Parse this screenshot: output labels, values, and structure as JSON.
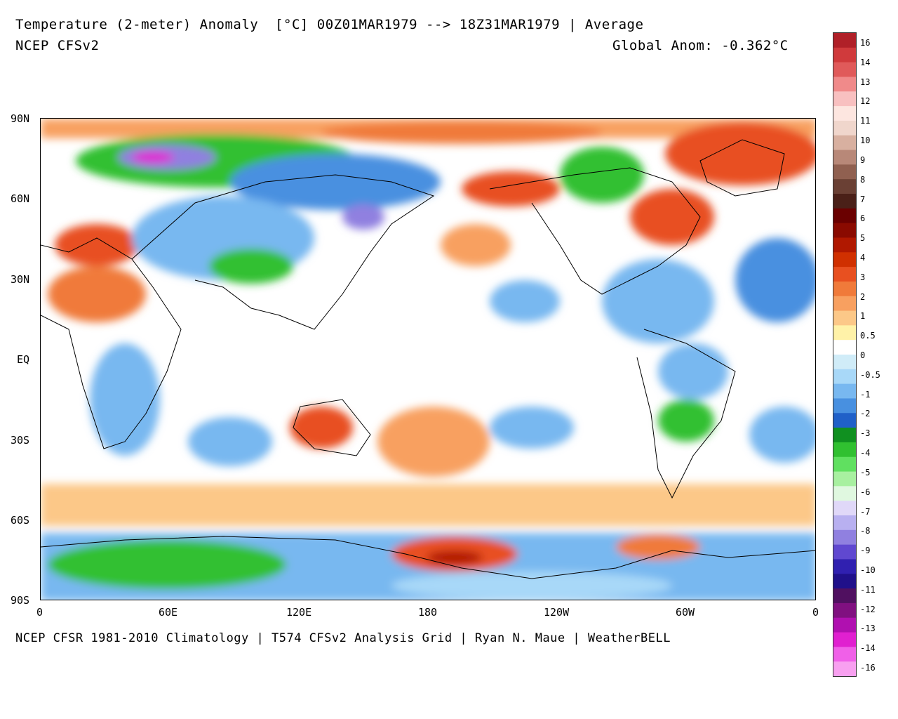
{
  "header": {
    "title": "Temperature (2-meter) Anomaly  [°C] 00Z01MAR1979 --> 18Z31MAR1979 | Average",
    "model": "NCEP CFSv2",
    "global_anom": "Global Anom: -0.362°C"
  },
  "footer": "NCEP CFSR 1981-2010 Climatology | T574 CFSv2 Analysis Grid | Ryan N. Maue | WeatherBELL",
  "axes": {
    "lat_labels": [
      "90N",
      "60N",
      "30N",
      "30S",
      "60S",
      "90S"
    ],
    "equator_label": "EQ",
    "lon_labels": [
      "0",
      "60E",
      "120E",
      "180",
      "120W",
      "60W",
      "0"
    ]
  },
  "legend": {
    "labels": [
      "16",
      "14",
      "13",
      "12",
      "11",
      "10",
      "9",
      "8",
      "7",
      "6",
      "5",
      "4",
      "3",
      "2",
      "1",
      "0.5",
      "0",
      "-0.5",
      "-1",
      "-2",
      "-3",
      "-4",
      "-5",
      "-6",
      "-7",
      "-8",
      "-9",
      "-10",
      "-11",
      "-12",
      "-13",
      "-14",
      "-16"
    ],
    "colors": [
      "#b02028",
      "#d03a3c",
      "#e05a5a",
      "#f08a8a",
      "#f8c0c0",
      "#fde6e0",
      "#f0d6cc",
      "#d8b0a0",
      "#b88878",
      "#906050",
      "#6a4034",
      "#4a2018",
      "#6a0000",
      "#8a0a00",
      "#b01800",
      "#d03000",
      "#e85020",
      "#f07a3a",
      "#f8a060",
      "#fcc888",
      "#fff2a8",
      "#ffffff",
      "#d0ecf8",
      "#a8d8f8",
      "#78b8f0",
      "#4890e0",
      "#2060c8",
      "#109020",
      "#30c030",
      "#60e060",
      "#a8f0a0",
      "#e0f8e0",
      "#e0d8f8",
      "#b8b0f0",
      "#9080e0",
      "#6048d0",
      "#3020b0",
      "#20108a",
      "#501060",
      "#801080",
      "#b010b0",
      "#e020d0",
      "#f060e8",
      "#f8a0f0"
    ]
  },
  "map": {
    "lat_range": [
      -90,
      90
    ],
    "lon_range": [
      0,
      360
    ],
    "zero_color": "#ffffff"
  }
}
